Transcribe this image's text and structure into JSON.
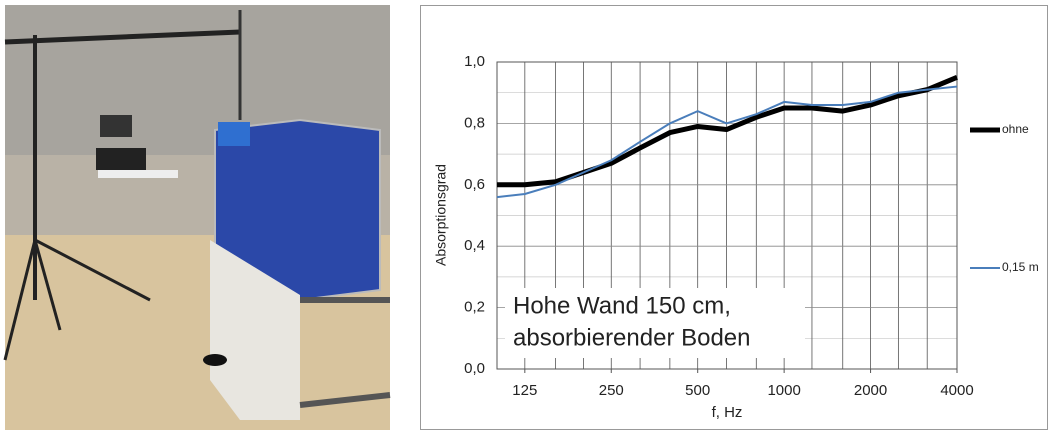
{
  "chart_data": {
    "type": "line",
    "y_label": "Absorptionsgrad",
    "x_label": "f, Hz",
    "annotation": [
      "Hohe Wand 150 cm,",
      "absorbierender Boden"
    ],
    "x": [
      100,
      125,
      160,
      200,
      250,
      315,
      400,
      500,
      630,
      800,
      1000,
      1250,
      1600,
      2000,
      2500,
      3150,
      4000
    ],
    "series": [
      {
        "name": "ohne",
        "color": "#000000",
        "width": 5,
        "values": [
          0.6,
          0.6,
          0.61,
          0.64,
          0.67,
          0.72,
          0.77,
          0.79,
          0.78,
          0.82,
          0.85,
          0.85,
          0.84,
          0.86,
          0.89,
          0.91,
          0.95
        ]
      },
      {
        "name": "0,15 m",
        "color": "#4a7ebb",
        "width": 2,
        "values": [
          0.56,
          0.57,
          0.6,
          0.64,
          0.68,
          0.74,
          0.8,
          0.84,
          0.8,
          0.83,
          0.87,
          0.86,
          0.86,
          0.87,
          0.9,
          0.91,
          0.92
        ]
      }
    ],
    "xlim": [
      100,
      4000
    ],
    "xscale": "log",
    "xticks": [
      125,
      250,
      500,
      1000,
      2000,
      4000
    ],
    "ylim": [
      0,
      1
    ],
    "yticks": [
      {
        "value": 0,
        "label": "0,0"
      },
      {
        "value": 0.2,
        "label": "0,2"
      },
      {
        "value": 0.4,
        "label": "0,4"
      },
      {
        "value": 0.6,
        "label": "0,6"
      },
      {
        "value": 0.8,
        "label": "0,8"
      },
      {
        "value": 1,
        "label": "1,0"
      }
    ],
    "grid": true,
    "legend_position": "right"
  }
}
